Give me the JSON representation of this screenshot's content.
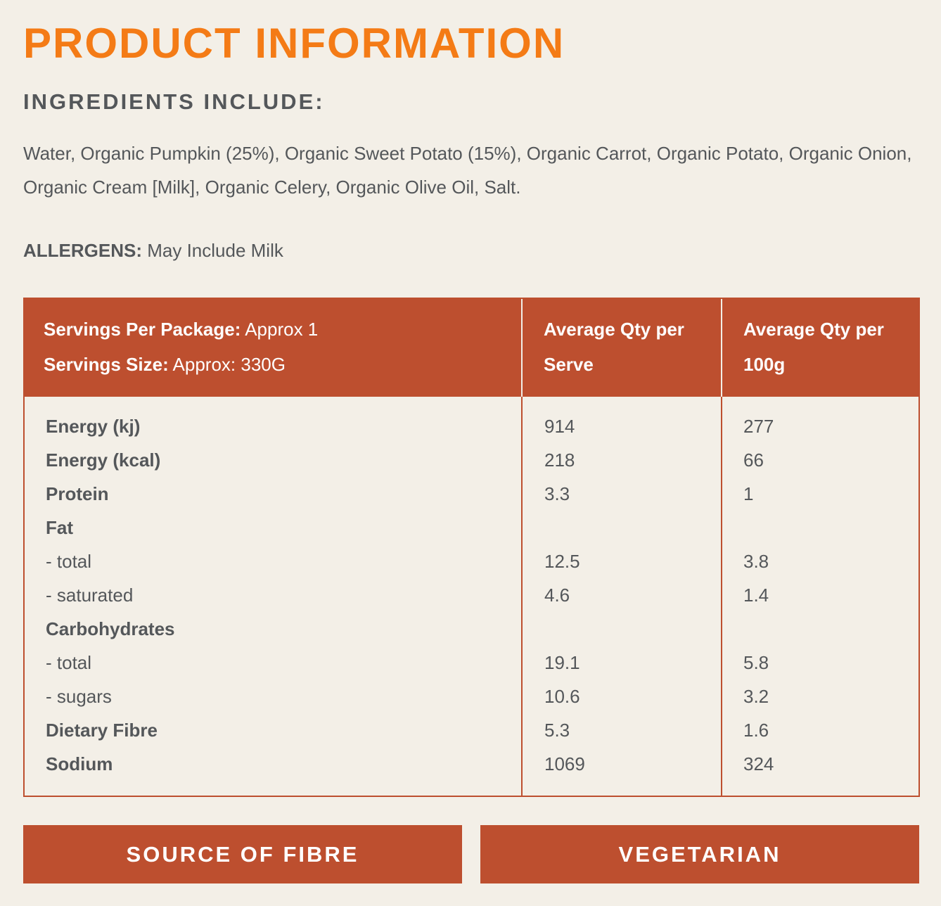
{
  "page": {
    "title": "PRODUCT INFORMATION",
    "ingredients_heading": "INGREDIENTS INCLUDE:",
    "ingredients_text": "Water, Organic Pumpkin (25%), Organic Sweet Potato (15%), Organic Carrot, Organic Potato, Organic Onion, Organic Cream [Milk], Organic Celery, Organic Olive Oil, Salt.",
    "allergens_label": "ALLERGENS:",
    "allergens_value": "May Include Milk"
  },
  "nutrition": {
    "servings_per_package_label": "Servings Per Package:",
    "servings_per_package_value": "Approx 1",
    "serving_size_label": "Servings Size:",
    "serving_size_value": "Approx: 330G",
    "col_per_serve": "Average Qty per Serve",
    "col_per_100g": "Average Qty per 100g",
    "rows": [
      {
        "name": "Energy (kj)",
        "bold": true,
        "per_serve": "914",
        "per_100g": "277"
      },
      {
        "name": "Energy (kcal)",
        "bold": true,
        "per_serve": "218",
        "per_100g": "66"
      },
      {
        "name": "Protein",
        "bold": true,
        "per_serve": "3.3",
        "per_100g": "1"
      },
      {
        "name": "Fat",
        "bold": true,
        "per_serve": "",
        "per_100g": ""
      },
      {
        "name": "- total",
        "bold": false,
        "per_serve": "12.5",
        "per_100g": "3.8"
      },
      {
        "name": "- saturated",
        "bold": false,
        "per_serve": "4.6",
        "per_100g": "1.4"
      },
      {
        "name": "Carbohydrates",
        "bold": true,
        "per_serve": "",
        "per_100g": ""
      },
      {
        "name": "- total",
        "bold": false,
        "per_serve": "19.1",
        "per_100g": "5.8"
      },
      {
        "name": "- sugars",
        "bold": false,
        "per_serve": "10.6",
        "per_100g": "3.2"
      },
      {
        "name": "Dietary Fibre",
        "bold": true,
        "per_serve": "5.3",
        "per_100g": "1.6"
      },
      {
        "name": "Sodium",
        "bold": true,
        "per_serve": "1069",
        "per_100g": "324"
      }
    ]
  },
  "badges": {
    "fibre": "SOURCE OF FIBRE",
    "vegetarian": "VEGETARIAN"
  },
  "colors": {
    "title_orange": "#f47b16",
    "table_rust": "#bd4f2f",
    "background": "#f3efe7",
    "text_grey": "#54575a"
  }
}
